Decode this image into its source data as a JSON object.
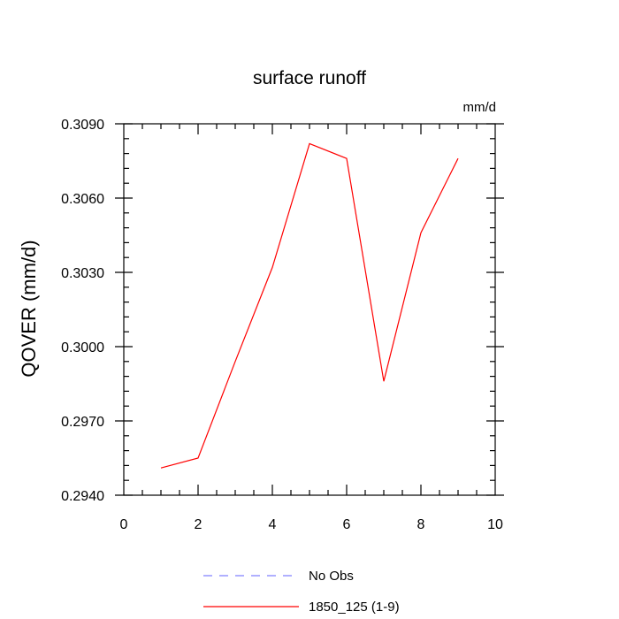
{
  "chart_data": {
    "type": "line",
    "title": "surface runoff",
    "units_label": "mm/d",
    "xlabel": "",
    "ylabel": "QOVER  (mm/d)",
    "xlim": [
      0,
      10
    ],
    "ylim": [
      0.294,
      0.309
    ],
    "x_ticks": [
      "0",
      "2",
      "4",
      "6",
      "8",
      "10"
    ],
    "y_ticks": [
      "0.2940",
      "0.2970",
      "0.3000",
      "0.3030",
      "0.3060",
      "0.3090"
    ],
    "grid": false,
    "legend_position": "bottom",
    "series": [
      {
        "name": "No Obs",
        "color": "#8080ff",
        "dash": "dashed",
        "x": [],
        "values": []
      },
      {
        "name": "1850_125 (1-9)",
        "color": "#ff0000",
        "dash": "solid",
        "x": [
          1,
          2,
          3,
          4,
          5,
          6,
          7,
          8,
          9
        ],
        "values": [
          0.2951,
          0.2955,
          0.2994,
          0.3032,
          0.3082,
          0.3076,
          0.2986,
          0.3046,
          0.3076
        ]
      }
    ]
  }
}
